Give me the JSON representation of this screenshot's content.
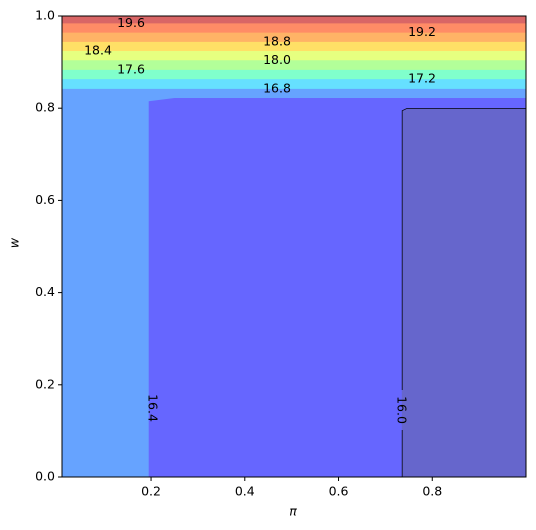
{
  "chart_data": {
    "type": "contour",
    "xlabel": "π",
    "ylabel": "w",
    "xlim": [
      0.01,
      1.0
    ],
    "ylim": [
      0,
      1
    ],
    "xticks": [
      0.2,
      0.4,
      0.6,
      0.8
    ],
    "yticks": [
      {
        "value": 0,
        "label": "0.0"
      },
      0.2,
      0.4,
      0.6,
      0.8,
      {
        "value": 1,
        "label": "1.0"
      }
    ],
    "fill_colors": [
      "#6666cc",
      "#6666ff",
      "#66a3ff",
      "#66e0ff",
      "#80ffcc",
      "#b3ff99",
      "#e6ff80",
      "#ffe066",
      "#ffb366",
      "#ff8c66",
      "#d96666"
    ],
    "line_color": "#000000",
    "contours": [
      {
        "level": 16,
        "label": "16.0",
        "x": [
          0.735,
          0.735,
          0.745,
          1.0
        ],
        "y": [
          0,
          0.795,
          0.8,
          0.8
        ]
      },
      {
        "level": 16.4,
        "label": "16.4",
        "x": [
          0.195,
          0.195,
          0.25,
          1.0
        ],
        "y": [
          0,
          0.815,
          0.822,
          0.822
        ]
      },
      {
        "level": 16.8,
        "label": "16.8",
        "x": [
          0.01,
          1.0
        ],
        "y": [
          0.842,
          0.842
        ]
      },
      {
        "level": 17.2,
        "label": "17.2",
        "x": [
          0.01,
          1.0
        ],
        "y": [
          0.863,
          0.863
        ]
      },
      {
        "level": 17.6,
        "label": "17.6",
        "x": [
          0.01,
          1.0
        ],
        "y": [
          0.883,
          0.883
        ]
      },
      {
        "level": 18,
        "label": "18.0",
        "x": [
          0.01,
          1.0
        ],
        "y": [
          0.904,
          0.904
        ]
      },
      {
        "level": 18.4,
        "label": "18.4",
        "x": [
          0.01,
          1.0
        ],
        "y": [
          0.924,
          0.924
        ]
      },
      {
        "level": 18.8,
        "label": "18.8",
        "x": [
          0.01,
          1.0
        ],
        "y": [
          0.944,
          0.944
        ]
      },
      {
        "level": 19.2,
        "label": "19.2",
        "x": [
          0.01,
          1.0
        ],
        "y": [
          0.964,
          0.964
        ]
      },
      {
        "level": 19.6,
        "label": "19.6",
        "x": [
          0.01,
          1.0
        ],
        "y": [
          0.984,
          0.984
        ]
      }
    ]
  }
}
